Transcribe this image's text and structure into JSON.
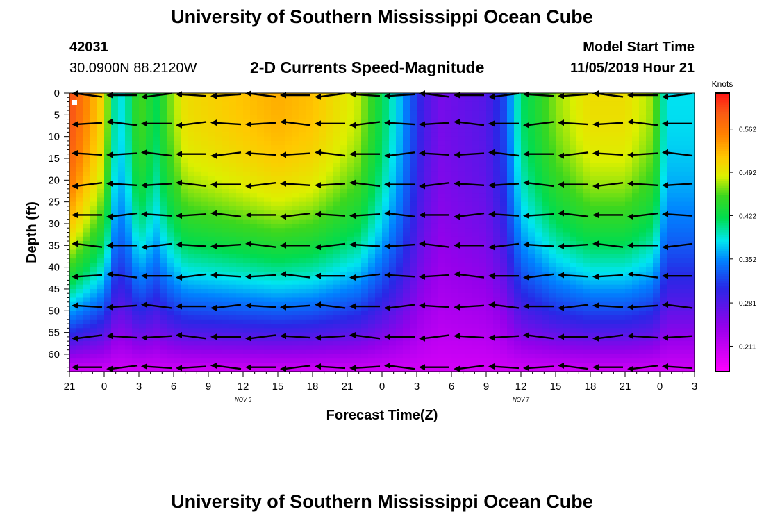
{
  "title_top": "University of Southern Mississippi Ocean Cube",
  "title_bottom": "University of Southern Mississippi Ocean Cube",
  "station_id": "42031",
  "station_coords": "30.0900N 88.2120W",
  "subtitle": "2-D Currents Speed-Magnitude",
  "model_start_label": "Model Start Time",
  "model_start_value": "11/05/2019 Hour 21",
  "colorbar_unit": "Knots",
  "colors": {
    "arrow": "#000000",
    "marker": "#ffffff"
  },
  "chart_data": {
    "type": "heatmap",
    "xlabel": "Forecast Time(Z)",
    "ylabel": "Depth (ft)",
    "x_range_hours": [
      0,
      54
    ],
    "y_range_ft": [
      0,
      64
    ],
    "x_ticks": [
      {
        "h": 0,
        "label": "21"
      },
      {
        "h": 3,
        "label": "0"
      },
      {
        "h": 6,
        "label": "3"
      },
      {
        "h": 9,
        "label": "6"
      },
      {
        "h": 12,
        "label": "9"
      },
      {
        "h": 15,
        "label": "12"
      },
      {
        "h": 18,
        "label": "15"
      },
      {
        "h": 21,
        "label": "18"
      },
      {
        "h": 24,
        "label": "21"
      },
      {
        "h": 27,
        "label": "0"
      },
      {
        "h": 30,
        "label": "3"
      },
      {
        "h": 33,
        "label": "6"
      },
      {
        "h": 36,
        "label": "9"
      },
      {
        "h": 39,
        "label": "12"
      },
      {
        "h": 42,
        "label": "15"
      },
      {
        "h": 45,
        "label": "18"
      },
      {
        "h": 48,
        "label": "21"
      },
      {
        "h": 51,
        "label": "0"
      },
      {
        "h": 54,
        "label": "3"
      }
    ],
    "date_labels": [
      {
        "h": 15,
        "label": "NOV 6"
      },
      {
        "h": 39,
        "label": "NOV 7"
      }
    ],
    "y_ticks": [
      0,
      5,
      10,
      15,
      20,
      25,
      30,
      35,
      40,
      45,
      50,
      55,
      60
    ],
    "colorbar": {
      "min": 0.17,
      "max": 0.62,
      "tick_values": [
        0.211,
        0.281,
        0.352,
        0.422,
        0.492,
        0.562
      ],
      "tick_labels": [
        "0.211",
        "0.281",
        "0.352",
        "0.422",
        "0.492",
        "0.562"
      ]
    },
    "surface_speed_by_hour": [
      {
        "h": 0,
        "v": 0.6
      },
      {
        "h": 3,
        "v": 0.5
      },
      {
        "h": 3.9,
        "v": 0.4
      },
      {
        "h": 4.7,
        "v": 0.38
      },
      {
        "h": 6,
        "v": 0.46
      },
      {
        "h": 7.5,
        "v": 0.42
      },
      {
        "h": 8.5,
        "v": 0.46
      },
      {
        "h": 10,
        "v": 0.5
      },
      {
        "h": 18,
        "v": 0.53
      },
      {
        "h": 21,
        "v": 0.52
      },
      {
        "h": 25,
        "v": 0.48
      },
      {
        "h": 27,
        "v": 0.42
      },
      {
        "h": 28.5,
        "v": 0.37
      },
      {
        "h": 30.5,
        "v": 0.29
      },
      {
        "h": 32,
        "v": 0.26
      },
      {
        "h": 36,
        "v": 0.28
      },
      {
        "h": 37.5,
        "v": 0.32
      },
      {
        "h": 39,
        "v": 0.41
      },
      {
        "h": 42,
        "v": 0.47
      },
      {
        "h": 45,
        "v": 0.5
      },
      {
        "h": 48,
        "v": 0.5
      },
      {
        "h": 50.5,
        "v": 0.47
      },
      {
        "h": 51.5,
        "v": 0.38
      },
      {
        "h": 54,
        "v": 0.38
      }
    ],
    "bottom_speed_ft64": 0.2,
    "arrow_depths_ft": [
      0,
      7,
      14,
      21,
      28,
      35,
      42,
      49,
      56,
      63
    ],
    "arrow_hours": [
      1.5,
      4.5,
      7.5,
      10.5,
      13.5,
      16.5,
      19.5,
      22.5,
      25.5,
      28.5,
      31.5,
      34.5,
      37.5,
      40.5,
      43.5,
      46.5,
      49.5,
      52.5
    ],
    "arrow_direction": "westward (pointing left)"
  }
}
